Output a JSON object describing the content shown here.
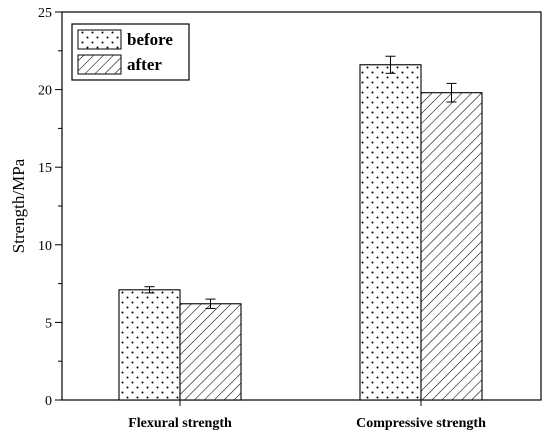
{
  "chart_data": {
    "type": "bar",
    "title": "",
    "xlabel": "",
    "ylabel": "Strength/MPa",
    "ylim": [
      0,
      25
    ],
    "yticks": [
      "0",
      "5",
      "10",
      "15",
      "20",
      "25"
    ],
    "categories": [
      "Flexural strength",
      "Compressive strength"
    ],
    "series": [
      {
        "name": "before",
        "pattern": "dots",
        "values": [
          7.1,
          21.6
        ],
        "errors": [
          0.2,
          0.55
        ]
      },
      {
        "name": "after",
        "pattern": "hatch",
        "values": [
          6.2,
          19.8
        ],
        "errors": [
          0.3,
          0.6
        ]
      }
    ],
    "grid": false,
    "legend_position": "top-left",
    "colors": {
      "bar_fill": "#ffffff",
      "stroke": "#000000"
    }
  }
}
